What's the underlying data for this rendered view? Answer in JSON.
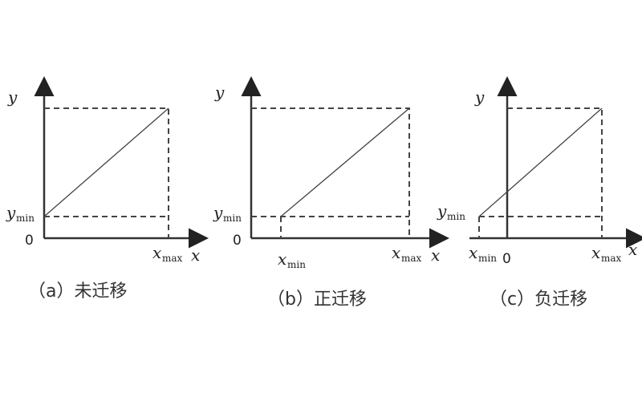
{
  "labels": {
    "y": "y",
    "x": "x",
    "y_min": "y",
    "y_min_sub": "min",
    "x_max": "x",
    "x_max_sub": "max",
    "x_min": "x",
    "x_min_sub": "min",
    "zero": "0"
  },
  "panels": [
    {
      "caption": "（a）未迁移"
    },
    {
      "caption": "（b）正迁移"
    },
    {
      "caption": "（c）负迁移"
    }
  ]
}
